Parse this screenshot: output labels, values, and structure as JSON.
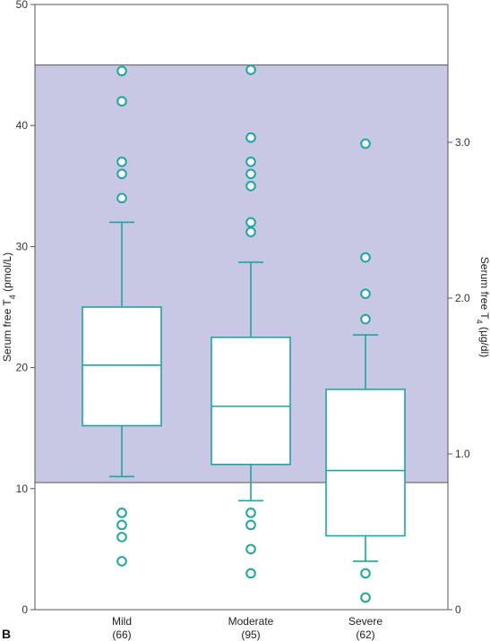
{
  "panel_letter": "B",
  "chart_data": {
    "type": "box",
    "title": "",
    "ylabel_left": {
      "text": "Serum free T",
      "sub": "4",
      "unit": " (pmol/L)"
    },
    "ylabel_right": {
      "text": "Serum free T",
      "sub": "4",
      "unit": " (µg/dl)"
    },
    "ylim": [
      0,
      50
    ],
    "yticks_left": [
      0,
      10,
      20,
      30,
      40,
      50
    ],
    "yticks_right": [
      {
        "label": "0",
        "pmol": 0
      },
      {
        "label": "1.0",
        "pmol": 12.87
      },
      {
        "label": "2.0",
        "pmol": 25.74
      },
      {
        "label": "3.0",
        "pmol": 38.61
      }
    ],
    "reference_range": [
      10.5,
      45
    ],
    "colors": {
      "accent": "#1aa6a6",
      "band": "#c9c8e4",
      "axis": "#555555"
    },
    "categories": [
      {
        "name": "Mild",
        "n": "(66)",
        "whisker_low": 11,
        "q1": 15.2,
        "median": 20.2,
        "q3": 25,
        "whisker_high": 32,
        "outliers": [
          44.5,
          42,
          37,
          36,
          34,
          8,
          7,
          6,
          4
        ]
      },
      {
        "name": "Moderate",
        "n": "(95)",
        "whisker_low": 9,
        "q1": 12,
        "median": 16.8,
        "q3": 22.5,
        "whisker_high": 28.7,
        "outliers": [
          44.6,
          39,
          37,
          36,
          35,
          32,
          31.2,
          8,
          7,
          5,
          3
        ]
      },
      {
        "name": "Severe",
        "n": "(62)",
        "whisker_low": 4,
        "q1": 6.1,
        "median": 11.5,
        "q3": 18.2,
        "whisker_high": 22.7,
        "outliers": [
          38.5,
          29.1,
          26.1,
          24,
          3,
          1
        ]
      }
    ]
  }
}
